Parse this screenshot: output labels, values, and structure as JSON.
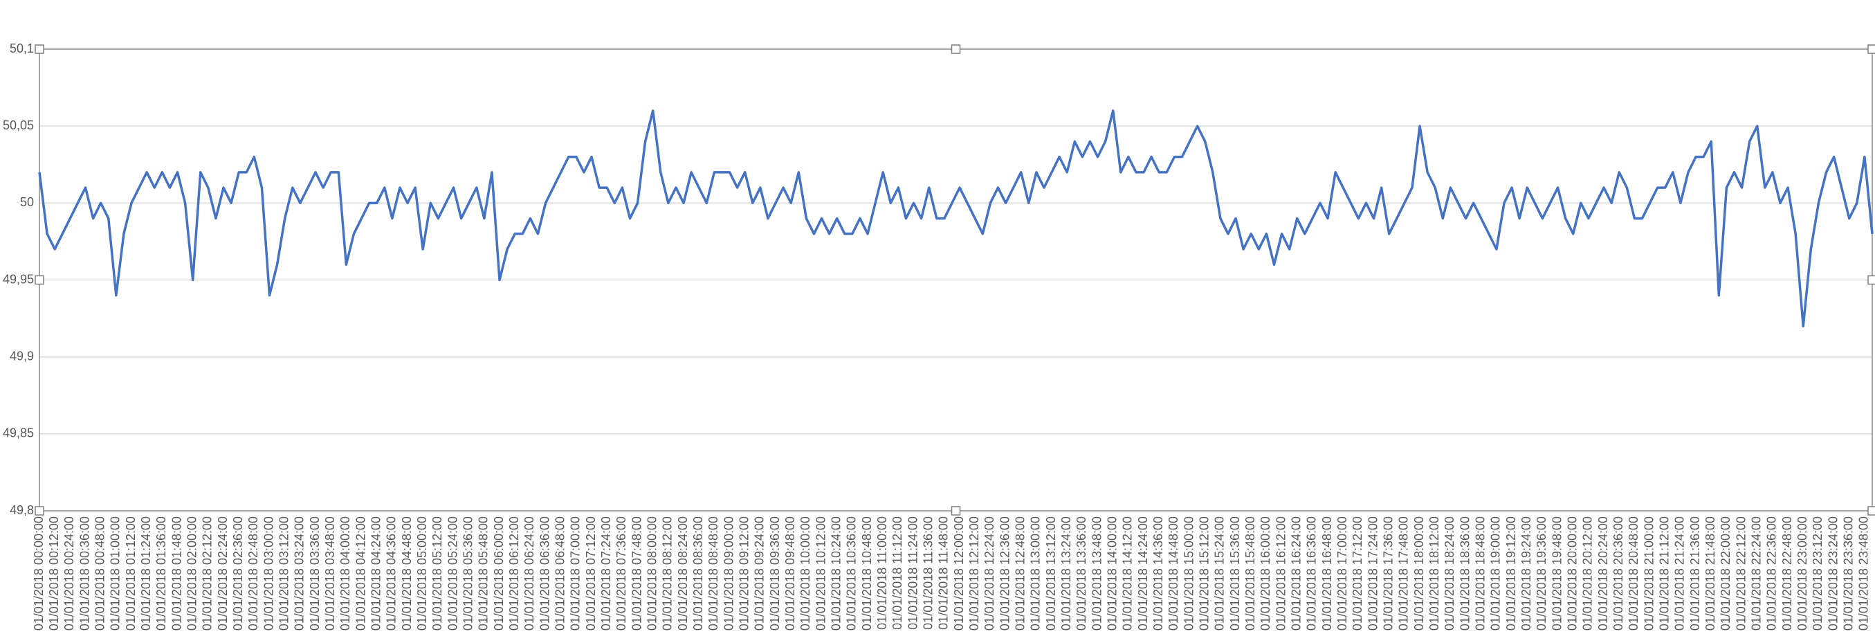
{
  "chart_data": {
    "type": "line",
    "categories": [
      "01/01/2018 00:00:00",
      null,
      "01/01/2018 00:12:00",
      null,
      "01/01/2018 00:24:00",
      null,
      "01/01/2018 00:36:00",
      null,
      "01/01/2018 00:48:00",
      null,
      "01/01/2018 01:00:00",
      null,
      "01/01/2018 01:12:00",
      null,
      "01/01/2018 01:24:00",
      null,
      "01/01/2018 01:36:00",
      null,
      "01/01/2018 01:48:00",
      null,
      "01/01/2018 02:00:00",
      null,
      "01/01/2018 02:12:00",
      null,
      "01/01/2018 02:24:00",
      null,
      "01/01/2018 02:36:00",
      null,
      "01/01/2018 02:48:00",
      null,
      "01/01/2018 03:00:00",
      null,
      "01/01/2018 03:12:00",
      null,
      "01/01/2018 03:24:00",
      null,
      "01/01/2018 03:36:00",
      null,
      "01/01/2018 03:48:00",
      null,
      "01/01/2018 04:00:00",
      null,
      "01/01/2018 04:12:00",
      null,
      "01/01/2018 04:24:00",
      null,
      "01/01/2018 04:36:00",
      null,
      "01/01/2018 04:48:00",
      null,
      "01/01/2018 05:00:00",
      null,
      "01/01/2018 05:12:00",
      null,
      "01/01/2018 05:24:00",
      null,
      "01/01/2018 05:36:00",
      null,
      "01/01/2018 05:48:00",
      null,
      "01/01/2018 06:00:00",
      null,
      "01/01/2018 06:12:00",
      null,
      "01/01/2018 06:24:00",
      null,
      "01/01/2018 06:36:00",
      null,
      "01/01/2018 06:48:00",
      null,
      "01/01/2018 07:00:00",
      null,
      "01/01/2018 07:12:00",
      null,
      "01/01/2018 07:24:00",
      null,
      "01/01/2018 07:36:00",
      null,
      "01/01/2018 07:48:00",
      null,
      "01/01/2018 08:00:00",
      null,
      "01/01/2018 08:12:00",
      null,
      "01/01/2018 08:24:00",
      null,
      "01/01/2018 08:36:00",
      null,
      "01/01/2018 08:48:00",
      null,
      "01/01/2018 09:00:00",
      null,
      "01/01/2018 09:12:00",
      null,
      "01/01/2018 09:24:00",
      null,
      "01/01/2018 09:36:00",
      null,
      "01/01/2018 09:48:00",
      null,
      "01/01/2018 10:00:00",
      null,
      "01/01/2018 10:12:00",
      null,
      "01/01/2018 10:24:00",
      null,
      "01/01/2018 10:36:00",
      null,
      "01/01/2018 10:48:00",
      null,
      "01/01/2018 11:00:00",
      null,
      "01/01/2018 11:12:00",
      null,
      "01/01/2018 11:24:00",
      null,
      "01/01/2018 11:36:00",
      null,
      "01/01/2018 11:48:00",
      null,
      "01/01/2018 12:00:00",
      null,
      "01/01/2018 12:12:00",
      null,
      "01/01/2018 12:24:00",
      null,
      "01/01/2018 12:36:00",
      null,
      "01/01/2018 12:48:00",
      null,
      "01/01/2018 13:00:00",
      null,
      "01/01/2018 13:12:00",
      null,
      "01/01/2018 13:24:00",
      null,
      "01/01/2018 13:36:00",
      null,
      "01/01/2018 13:48:00",
      null,
      "01/01/2018 14:00:00",
      null,
      "01/01/2018 14:12:00",
      null,
      "01/01/2018 14:24:00",
      null,
      "01/01/2018 14:36:00",
      null,
      "01/01/2018 14:48:00",
      null,
      "01/01/2018 15:00:00",
      null,
      "01/01/2018 15:12:00",
      null,
      "01/01/2018 15:24:00",
      null,
      "01/01/2018 15:36:00",
      null,
      "01/01/2018 15:48:00",
      null,
      "01/01/2018 16:00:00",
      null,
      "01/01/2018 16:12:00",
      null,
      "01/01/2018 16:24:00",
      null,
      "01/01/2018 16:36:00",
      null,
      "01/01/2018 16:48:00",
      null,
      "01/01/2018 17:00:00",
      null,
      "01/01/2018 17:12:00",
      null,
      "01/01/2018 17:24:00",
      null,
      "01/01/2018 17:36:00",
      null,
      "01/01/2018 17:48:00",
      null,
      "01/01/2018 18:00:00",
      null,
      "01/01/2018 18:12:00",
      null,
      "01/01/2018 18:24:00",
      null,
      "01/01/2018 18:36:00",
      null,
      "01/01/2018 18:48:00",
      null,
      "01/01/2018 19:00:00",
      null,
      "01/01/2018 19:12:00",
      null,
      "01/01/2018 19:24:00",
      null,
      "01/01/2018 19:36:00",
      null,
      "01/01/2018 19:48:00",
      null,
      "01/01/2018 20:00:00",
      null,
      "01/01/2018 20:12:00",
      null,
      "01/01/2018 20:24:00",
      null,
      "01/01/2018 20:36:00",
      null,
      "01/01/2018 20:48:00",
      null,
      "01/01/2018 21:00:00",
      null,
      "01/01/2018 21:12:00",
      null,
      "01/01/2018 21:24:00",
      null,
      "01/01/2018 21:36:00",
      null,
      "01/01/2018 21:48:00",
      null,
      "01/01/2018 22:00:00",
      null,
      "01/01/2018 22:12:00",
      null,
      "01/01/2018 22:24:00",
      null,
      "01/01/2018 22:36:00",
      null,
      "01/01/2018 22:48:00",
      null,
      "01/01/2018 23:00:00",
      null,
      "01/01/2018 23:12:00",
      null,
      "01/01/2018 23:24:00",
      null,
      "01/01/2018 23:36:00",
      null,
      "01/01/2018 23:48:00",
      null
    ],
    "series": [
      {
        "color": "#4472c4",
        "values": [
          50.02,
          49.98,
          49.97,
          49.98,
          49.99,
          50.0,
          50.01,
          49.99,
          50.0,
          49.99,
          49.94,
          49.98,
          50.0,
          50.01,
          50.02,
          50.01,
          50.02,
          50.01,
          50.02,
          50.0,
          49.95,
          50.02,
          50.01,
          49.99,
          50.01,
          50.0,
          50.02,
          50.02,
          50.03,
          50.01,
          49.94,
          49.96,
          49.99,
          50.01,
          50.0,
          50.01,
          50.02,
          50.01,
          50.02,
          50.02,
          49.96,
          49.98,
          49.99,
          50.0,
          50.0,
          50.01,
          49.99,
          50.01,
          50.0,
          50.01,
          49.97,
          50.0,
          49.99,
          50.0,
          50.01,
          49.99,
          50.0,
          50.01,
          49.99,
          50.02,
          49.95,
          49.97,
          49.98,
          49.98,
          49.99,
          49.98,
          50.0,
          50.01,
          50.02,
          50.03,
          50.03,
          50.02,
          50.03,
          50.01,
          50.01,
          50.0,
          50.01,
          49.99,
          50.0,
          50.04,
          50.06,
          50.02,
          50.0,
          50.01,
          50.0,
          50.02,
          50.01,
          50.0,
          50.02,
          50.02,
          50.02,
          50.01,
          50.02,
          50.0,
          50.01,
          49.99,
          50.0,
          50.01,
          50.0,
          50.02,
          49.99,
          49.98,
          49.99,
          49.98,
          49.99,
          49.98,
          49.98,
          49.99,
          49.98,
          50.0,
          50.02,
          50.0,
          50.01,
          49.99,
          50.0,
          49.99,
          50.01,
          49.99,
          49.99,
          50.0,
          50.01,
          50.0,
          49.99,
          49.98,
          50.0,
          50.01,
          50.0,
          50.01,
          50.02,
          50.0,
          50.02,
          50.01,
          50.02,
          50.03,
          50.02,
          50.04,
          50.03,
          50.04,
          50.03,
          50.04,
          50.06,
          50.02,
          50.03,
          50.02,
          50.02,
          50.03,
          50.02,
          50.02,
          50.03,
          50.03,
          50.04,
          50.05,
          50.04,
          50.02,
          49.99,
          49.98,
          49.99,
          49.97,
          49.98,
          49.97,
          49.98,
          49.96,
          49.98,
          49.97,
          49.99,
          49.98,
          49.99,
          50.0,
          49.99,
          50.02,
          50.01,
          50.0,
          49.99,
          50.0,
          49.99,
          50.01,
          49.98,
          49.99,
          50.0,
          50.01,
          50.05,
          50.02,
          50.01,
          49.99,
          50.01,
          50.0,
          49.99,
          50.0,
          49.99,
          49.98,
          49.97,
          50.0,
          50.01,
          49.99,
          50.01,
          50.0,
          49.99,
          50.0,
          50.01,
          49.99,
          49.98,
          50.0,
          49.99,
          50.0,
          50.01,
          50.0,
          50.02,
          50.01,
          49.99,
          49.99,
          50.0,
          50.01,
          50.01,
          50.02,
          50.0,
          50.02,
          50.03,
          50.03,
          50.04,
          49.94,
          50.01,
          50.02,
          50.01,
          50.04,
          50.05,
          50.01,
          50.02,
          50.0,
          50.01,
          49.98,
          49.92,
          49.97,
          50.0,
          50.02,
          50.03,
          50.01,
          49.99,
          50.0,
          50.03,
          49.98
        ]
      }
    ],
    "ylim": [
      49.8,
      50.1
    ],
    "yticks": [
      {
        "value": 49.8,
        "label": "49,8"
      },
      {
        "value": 49.85,
        "label": "49,85"
      },
      {
        "value": 49.9,
        "label": "49,9"
      },
      {
        "value": 49.95,
        "label": "49,95"
      },
      50,
      {
        "value": 50.05,
        "label": "50,05"
      },
      {
        "value": 50.1,
        "label": "50,1"
      }
    ],
    "grid": true
  }
}
